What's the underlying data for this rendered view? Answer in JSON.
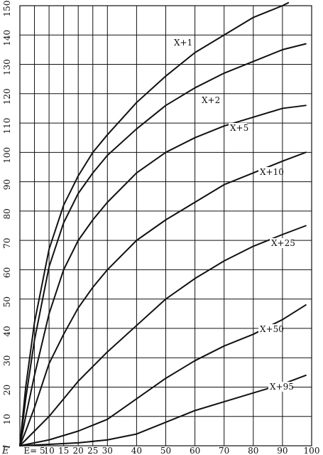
{
  "chart_data": {
    "type": "line",
    "xlabel": "E",
    "ylabel": "l",
    "xlim": [
      0,
      100
    ],
    "ylim": [
      0,
      150
    ],
    "grid": true,
    "x_ticks": [
      5,
      10,
      15,
      20,
      25,
      30,
      40,
      50,
      60,
      70,
      80,
      90,
      100
    ],
    "x_tick_labels": [
      "E= 5",
      "10",
      "15",
      "20",
      "25",
      "30",
      "40",
      "50",
      "60",
      "70",
      "80",
      "90",
      "100"
    ],
    "y_ticks": [
      10,
      20,
      30,
      40,
      50,
      60,
      70,
      80,
      90,
      100,
      110,
      120,
      130,
      140,
      150
    ],
    "y_tick_labels": [
      "10",
      "20",
      "30",
      "40",
      "50",
      "60",
      "70",
      "80",
      "90",
      "100",
      "110",
      "120",
      "130",
      "140",
      "150"
    ],
    "colors": {
      "background": "#ffffff",
      "grid": "#111111",
      "line": "#111111",
      "text": "#111111"
    },
    "series": [
      {
        "name": "X+1",
        "x": [
          0,
          2,
          5,
          10,
          15,
          20,
          25,
          30,
          40,
          50,
          60,
          70,
          80,
          90,
          92
        ],
        "y": [
          0,
          20,
          42,
          67,
          82,
          92,
          100,
          106,
          117,
          126,
          134,
          140,
          146,
          150,
          151
        ]
      },
      {
        "name": "X+2",
        "x": [
          0,
          2,
          5,
          10,
          15,
          20,
          25,
          30,
          40,
          50,
          60,
          70,
          80,
          90,
          98
        ],
        "y": [
          0,
          16,
          36,
          61,
          76,
          86,
          93,
          99,
          108,
          116,
          122,
          127,
          131,
          135,
          137
        ]
      },
      {
        "name": "X+5",
        "x": [
          0,
          2,
          5,
          10,
          15,
          20,
          25,
          30,
          40,
          50,
          60,
          70,
          80,
          90,
          98
        ],
        "y": [
          0,
          10,
          24,
          45,
          60,
          70,
          77,
          83,
          93,
          100,
          105,
          109,
          112,
          115,
          116
        ]
      },
      {
        "name": "X+10",
        "x": [
          0,
          2,
          5,
          10,
          15,
          20,
          25,
          30,
          40,
          50,
          60,
          70,
          80,
          90,
          98
        ],
        "y": [
          0,
          5,
          13,
          28,
          38,
          47,
          54,
          60,
          70,
          77,
          83,
          89,
          93,
          97,
          100
        ]
      },
      {
        "name": "X+25",
        "x": [
          0,
          2,
          5,
          10,
          15,
          20,
          25,
          30,
          40,
          50,
          60,
          70,
          80,
          90,
          98
        ],
        "y": [
          0,
          2,
          5,
          10,
          16,
          22,
          27,
          32,
          41,
          50,
          57,
          63,
          68,
          72,
          75
        ]
      },
      {
        "name": "X+50",
        "x": [
          0,
          5,
          10,
          20,
          30,
          40,
          50,
          60,
          70,
          80,
          90,
          98
        ],
        "y": [
          0,
          1,
          2,
          5,
          9,
          16,
          23,
          29,
          34,
          38,
          43,
          48
        ]
      },
      {
        "name": "X+95",
        "x": [
          0,
          10,
          20,
          30,
          40,
          50,
          60,
          70,
          80,
          90,
          98
        ],
        "y": [
          0,
          0.5,
          1,
          2,
          4,
          8,
          12,
          15,
          18,
          21,
          24
        ]
      }
    ]
  }
}
